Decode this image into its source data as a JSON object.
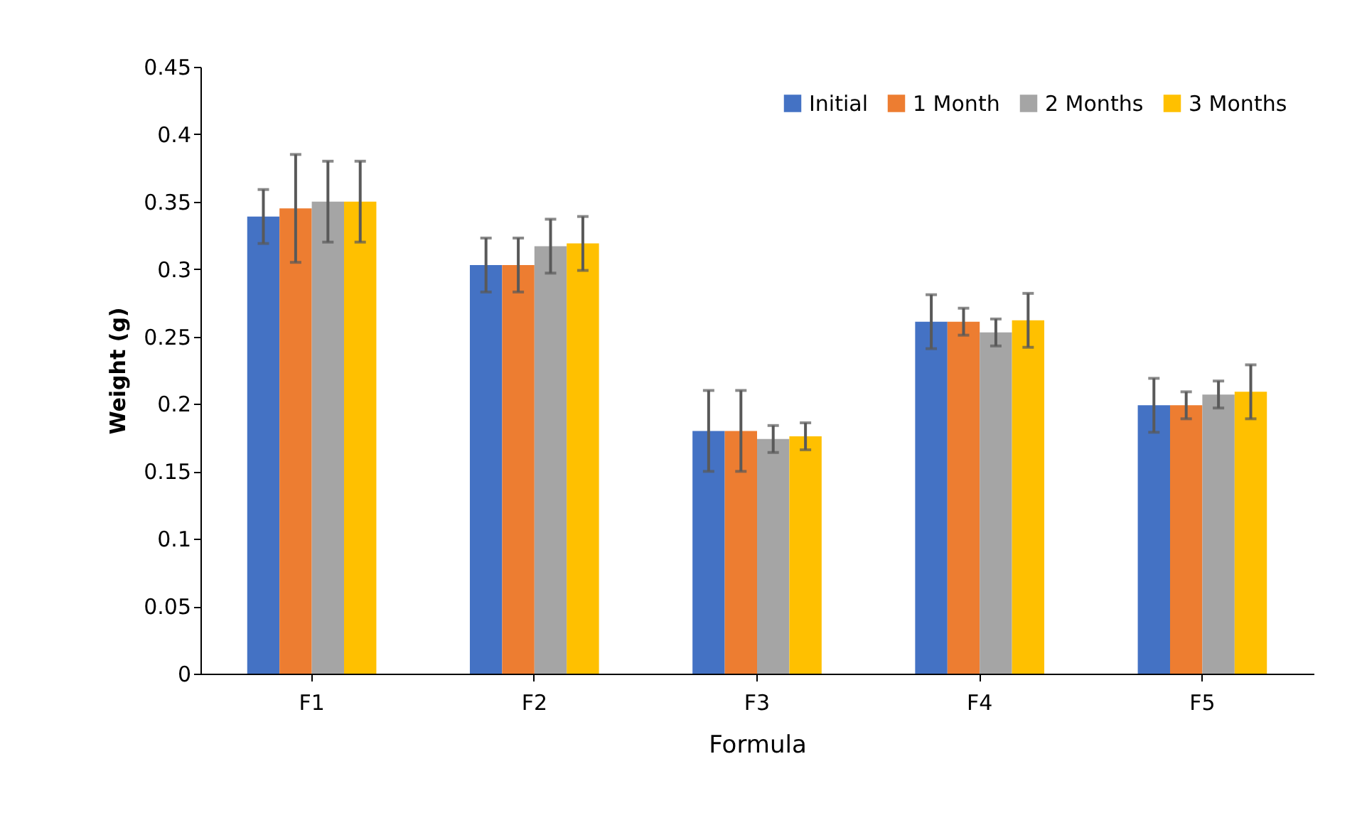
{
  "chart_data": {
    "type": "bar",
    "xlabel": "Formula",
    "ylabel": "Weight (g)",
    "categories": [
      "F1",
      "F2",
      "F3",
      "F4",
      "F5"
    ],
    "series": [
      {
        "name": "Initial",
        "color": "#4472c4",
        "values": [
          0.339,
          0.303,
          0.18,
          0.261,
          0.199
        ],
        "errors": [
          0.02,
          0.02,
          0.03,
          0.02,
          0.02
        ]
      },
      {
        "name": "1 Month",
        "color": "#ed7d31",
        "values": [
          0.345,
          0.303,
          0.18,
          0.261,
          0.199
        ],
        "errors": [
          0.04,
          0.02,
          0.03,
          0.01,
          0.01
        ]
      },
      {
        "name": "2 Months",
        "color": "#a5a5a5",
        "values": [
          0.35,
          0.317,
          0.174,
          0.253,
          0.207
        ],
        "errors": [
          0.03,
          0.02,
          0.01,
          0.01,
          0.01
        ]
      },
      {
        "name": "3 Months",
        "color": "#ffc000",
        "values": [
          0.35,
          0.319,
          0.176,
          0.262,
          0.209
        ],
        "errors": [
          0.03,
          0.02,
          0.01,
          0.02,
          0.02
        ]
      }
    ],
    "ylim": [
      0,
      0.45
    ],
    "yticks": [
      0,
      0.05,
      0.1,
      0.15,
      0.2,
      0.25,
      0.3,
      0.35,
      0.4,
      0.45
    ],
    "grid": false,
    "legend": "top right"
  }
}
